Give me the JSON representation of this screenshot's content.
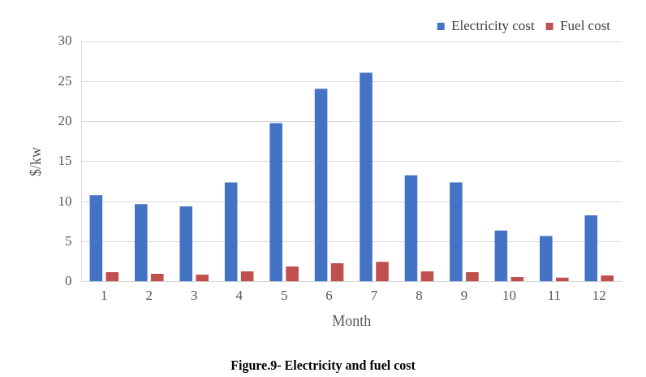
{
  "chart_data": {
    "type": "bar",
    "title": "Figure.9- Electricity and fuel cost",
    "x_label": "Month",
    "y_label": "$/kw",
    "categories": [
      "1",
      "2",
      "3",
      "4",
      "5",
      "6",
      "7",
      "8",
      "9",
      "10",
      "11",
      "12"
    ],
    "series": [
      {
        "name": "Electricity cost",
        "color": "#4472c4",
        "values": [
          10.8,
          9.7,
          9.4,
          12.4,
          19.8,
          24.1,
          26.1,
          13.3,
          12.4,
          6.4,
          5.7,
          8.3
        ]
      },
      {
        "name": "Fuel cost",
        "color": "#c0504d",
        "values": [
          1.2,
          1.0,
          0.9,
          1.3,
          1.9,
          2.3,
          2.5,
          1.3,
          1.2,
          0.6,
          0.5,
          0.8
        ]
      }
    ],
    "ylim": [
      0,
      30
    ],
    "yticks": [
      0,
      5,
      10,
      15,
      20,
      25,
      30
    ],
    "grid": true,
    "legend": "top-right"
  }
}
